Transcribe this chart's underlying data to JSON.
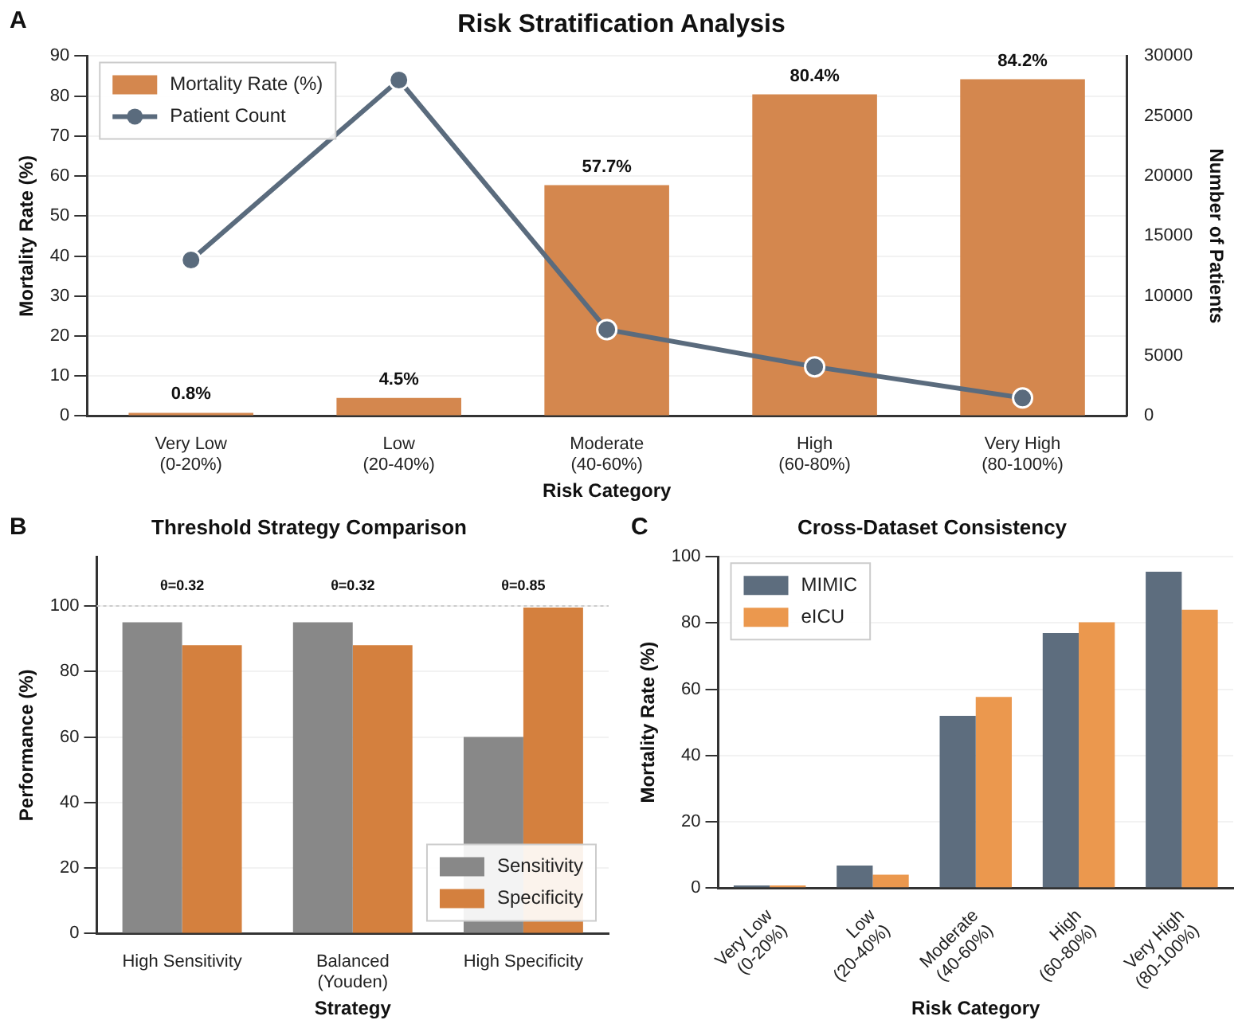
{
  "chart_data": [
    {
      "type": "bar",
      "title": "Risk Stratification Analysis",
      "annotations": [
        "A"
      ],
      "xlabel": "Risk Category",
      "ylabel": "Mortality Rate (%)",
      "y2label": "Number of Patients",
      "categories": [
        "Very Low\n(0-20%)",
        "Low\n(20-40%)",
        "Moderate\n(40-60%)",
        "High\n(60-80%)",
        "Very High\n(80-100%)"
      ],
      "series": [
        {
          "name": "Mortality Rate (%)",
          "color": "#d4874e",
          "values": [
            0.8,
            4.5,
            57.7,
            80.4,
            84.2
          ],
          "value_labels": [
            "0.8%",
            "4.5%",
            "57.7%",
            "80.4%",
            "84.2%"
          ]
        },
        {
          "name": "Patient Count",
          "type": "line",
          "axis": "y2",
          "color": "#5a6b7d",
          "values": [
            13000,
            28000,
            7200,
            4100,
            1500
          ]
        }
      ],
      "ylim": [
        0,
        90
      ],
      "yticks": [
        0,
        10,
        20,
        30,
        40,
        50,
        60,
        70,
        80,
        90
      ],
      "y2lim": [
        0,
        30000
      ],
      "y2ticks": [
        0,
        5000,
        10000,
        15000,
        20000,
        25000,
        30000
      ],
      "grid": "y",
      "legend": "top left",
      "marker": "circle"
    },
    {
      "type": "bar",
      "title": "Threshold Strategy Comparison",
      "xlabel": "Strategy",
      "ylabel": "Performance (%)",
      "annotations": [
        "B",
        "θ=0.32",
        "θ=0.32",
        "θ=0.85"
      ],
      "ref_lines": [
        {
          "axis": "y",
          "value": 100,
          "color": "#cccccc",
          "line_style": "dotted"
        }
      ],
      "categories": [
        "High Sensitivity",
        "Balanced\n(Youden)",
        "High Specificity"
      ],
      "series": [
        {
          "name": "Sensitivity",
          "color": "#888888",
          "values": [
            95,
            95,
            60
          ]
        },
        {
          "name": "Specificity",
          "color": "#d4803e",
          "values": [
            88,
            88,
            99.5
          ]
        }
      ],
      "ylim": [
        0,
        115
      ],
      "yticks": [
        0,
        20,
        40,
        60,
        80,
        100
      ],
      "grid": "y",
      "legend": "bottom right"
    },
    {
      "type": "bar",
      "title": "Cross-Dataset Consistency",
      "xlabel": "Risk Category",
      "ylabel": "Mortality Rate (%)",
      "annotations": [
        "C"
      ],
      "categories": [
        "Very Low\n(0-20%)",
        "Low\n(20-40%)",
        "Moderate\n(40-60%)",
        "High\n(60-80%)",
        "Very High\n(80-100%)"
      ],
      "series": [
        {
          "name": "MIMIC",
          "color": "#5d6d7e",
          "values": [
            0.8,
            6.8,
            52,
            77,
            95.5
          ]
        },
        {
          "name": "eICU",
          "color": "#eb984e",
          "values": [
            0.8,
            4,
            57.7,
            80.2,
            84
          ]
        }
      ],
      "ylim": [
        0,
        100
      ],
      "yticks": [
        0,
        20,
        40,
        60,
        80,
        100
      ],
      "grid": "y",
      "legend": "top left"
    }
  ]
}
